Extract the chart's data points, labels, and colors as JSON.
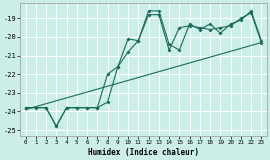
{
  "xlabel": "Humidex (Indice chaleur)",
  "background_color": "#cceee8",
  "grid_color": "#ffffff",
  "line_color": "#1a6b5a",
  "xlim": [
    -0.5,
    23.5
  ],
  "ylim": [
    -25.3,
    -18.2
  ],
  "xticks": [
    0,
    1,
    2,
    3,
    4,
    5,
    6,
    7,
    8,
    9,
    10,
    11,
    12,
    13,
    14,
    15,
    16,
    17,
    18,
    19,
    20,
    21,
    22,
    23
  ],
  "yticks": [
    -25,
    -24,
    -23,
    -22,
    -21,
    -20,
    -19
  ],
  "curve1_x": [
    0,
    1,
    2,
    3,
    4,
    5,
    6,
    7,
    8,
    9,
    10,
    11,
    12,
    13,
    14,
    15,
    16,
    17,
    18,
    19,
    20,
    21,
    22,
    23
  ],
  "curve1_y": [
    -23.8,
    -23.8,
    -23.8,
    -24.8,
    -23.8,
    -23.8,
    -23.8,
    -23.8,
    -23.5,
    -21.6,
    -20.1,
    -20.2,
    -18.6,
    -18.6,
    -20.4,
    -20.7,
    -19.3,
    -19.6,
    -19.3,
    -19.8,
    -19.3,
    -19.1,
    -18.6,
    -20.2
  ],
  "curve2_x": [
    0,
    2,
    3,
    4,
    5,
    6,
    7,
    8,
    9,
    10,
    11,
    12,
    13,
    14,
    15,
    16,
    17,
    18,
    19,
    20,
    21,
    22,
    23
  ],
  "curve2_y": [
    -23.8,
    -23.8,
    -24.8,
    -23.8,
    -23.8,
    -23.8,
    -23.8,
    -22.0,
    -21.6,
    -20.8,
    -20.2,
    -18.8,
    -18.8,
    -20.7,
    -19.5,
    -19.4,
    -19.5,
    -19.6,
    -19.5,
    -19.4,
    -19.0,
    -18.7,
    -20.3
  ],
  "line3_x": [
    0,
    23
  ],
  "line3_y": [
    -23.9,
    -20.3
  ]
}
